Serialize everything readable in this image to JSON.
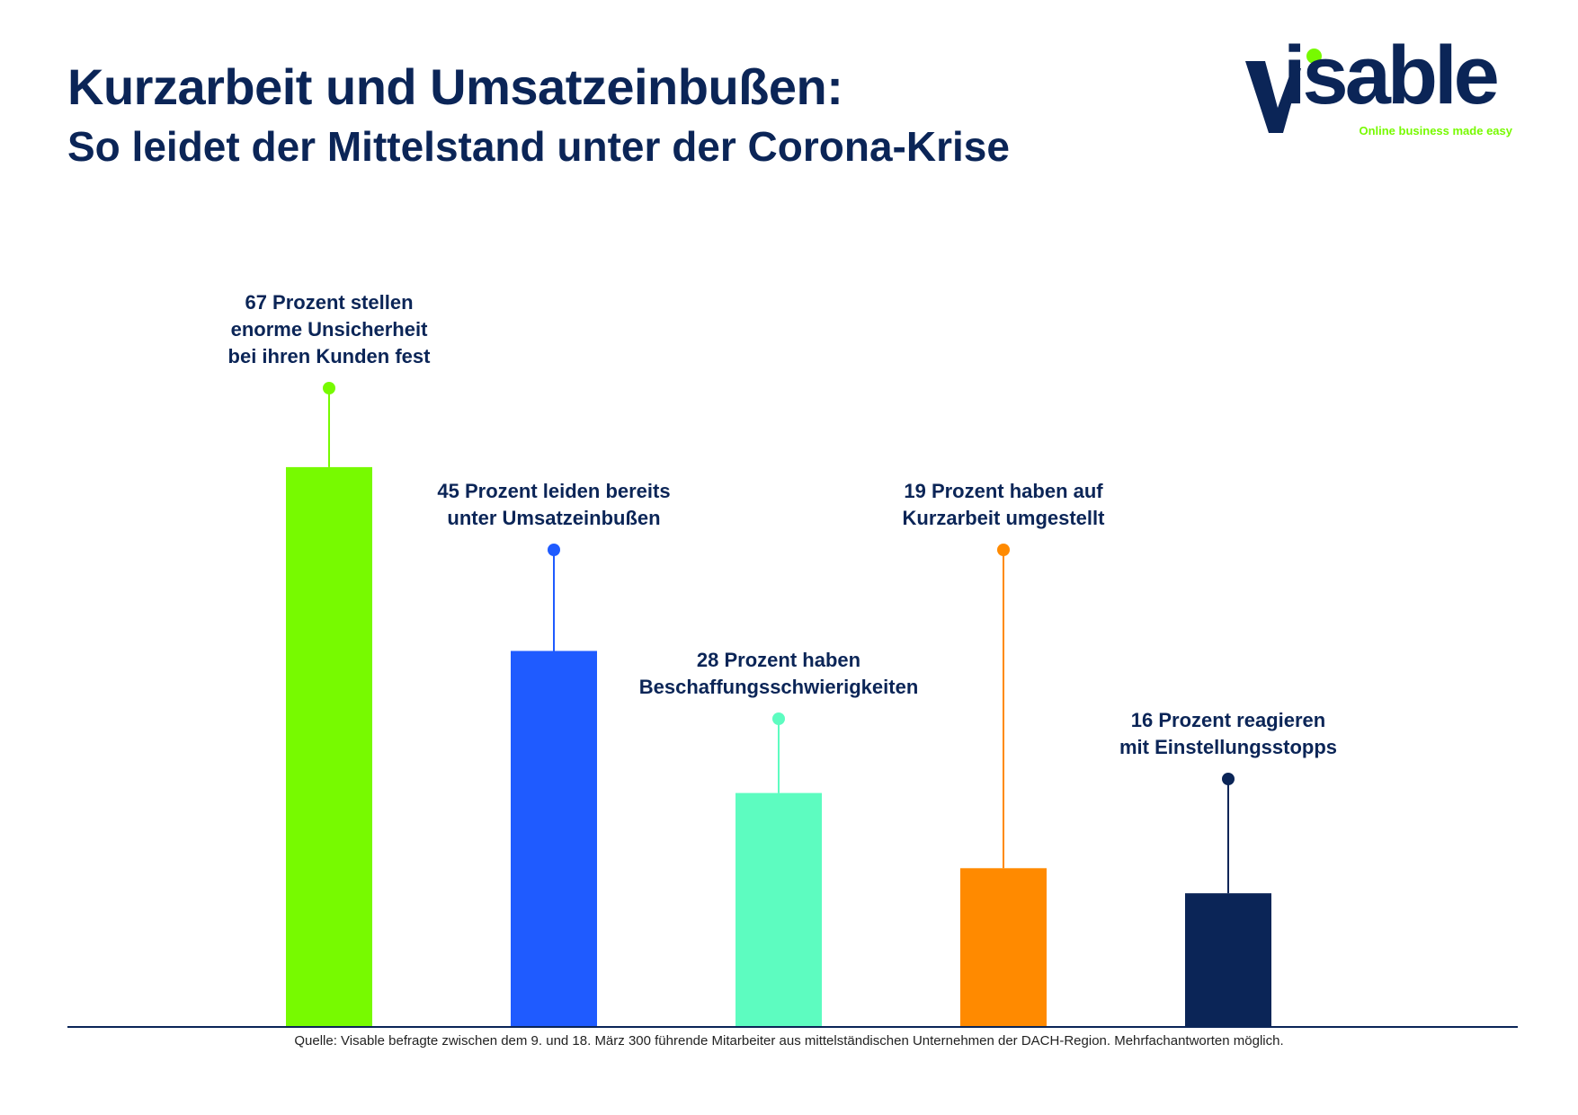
{
  "header": {
    "title": "Kurzarbeit und Umsatzeinbußen:",
    "subtitle": "So leidet der Mittelstand unter der Corona-Krise"
  },
  "logo": {
    "word": "isable",
    "tagline": "Online business made easy"
  },
  "colors": {
    "text": "#0b2557",
    "axis": "#0b2557",
    "logo_accent": "#77fa00"
  },
  "chart_data": {
    "type": "bar",
    "title": "",
    "xlabel": "",
    "ylabel": "",
    "ylim": [
      0,
      100
    ],
    "grid": false,
    "bars": [
      {
        "value": 67,
        "color": "#77fa00",
        "lines": [
          "67 Prozent stellen",
          "enorme Unsicherheit",
          "bei ihren Kunden fest"
        ]
      },
      {
        "value": 45,
        "color": "#1f5bff",
        "lines": [
          "45 Prozent leiden bereits",
          "unter Umsatzeinbußen"
        ]
      },
      {
        "value": 28,
        "color": "#5dfcc0",
        "lines": [
          "28 Prozent haben",
          "Beschaffungsschwierigkeiten"
        ]
      },
      {
        "value": 19,
        "color": "#ff8a00",
        "lines": [
          "19 Prozent haben auf",
          "Kurzarbeit umgestellt"
        ]
      },
      {
        "value": 16,
        "color": "#0b2557",
        "lines": [
          "16 Prozent reagieren",
          "mit Einstellungsstopps"
        ]
      }
    ]
  },
  "footer": {
    "source": "Quelle: Visable befragte zwischen dem 9. und 18. März 300 führende Mitarbeiter aus mittelständischen Unternehmen der DACH-Region. Mehrfachantworten möglich."
  }
}
